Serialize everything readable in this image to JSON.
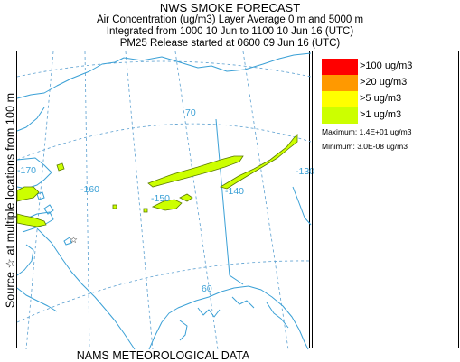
{
  "header": {
    "title": "NWS SMOKE FORECAST",
    "line1": "Air Concentration (ug/m3) Layer Average    0 m and  5000 m",
    "line2": "Integrated from 1000 10 Jun to 1100 10 Jun 16 (UTC)",
    "line3": "PM25 Release started at 0600 09 Jun 16 (UTC)"
  },
  "side_label": "Source ☆ at multiple locations    from  100 m",
  "footer": "NAMS METEOROLOGICAL DATA",
  "legend": {
    "items": [
      {
        "label": ">100 ug/m3",
        "color": "#ff0000"
      },
      {
        "label": ">20 ug/m3",
        "color": "#ff9900"
      },
      {
        "label": ">5 ug/m3",
        "color": "#ffff00"
      },
      {
        "label": ">1 ug/m3",
        "color": "#ccff00"
      }
    ],
    "maximum": "Maximum:  1.4E+01 ug/m3",
    "minimum": "Minimum:  3.0E-08 ug/m3"
  },
  "map": {
    "graticule_labels": {
      "lon_170": "-170",
      "lon_160": "-160",
      "lon_150": "-150",
      "lon_140": "-140",
      "lon_130": "-130",
      "lat_70": "70",
      "lat_60": "60"
    },
    "colors": {
      "coast": "#3aa0d6",
      "graticule": "#5a9fd0",
      "plume_fill": "#ccff00",
      "plume_edge": "#5a7a00"
    }
  }
}
